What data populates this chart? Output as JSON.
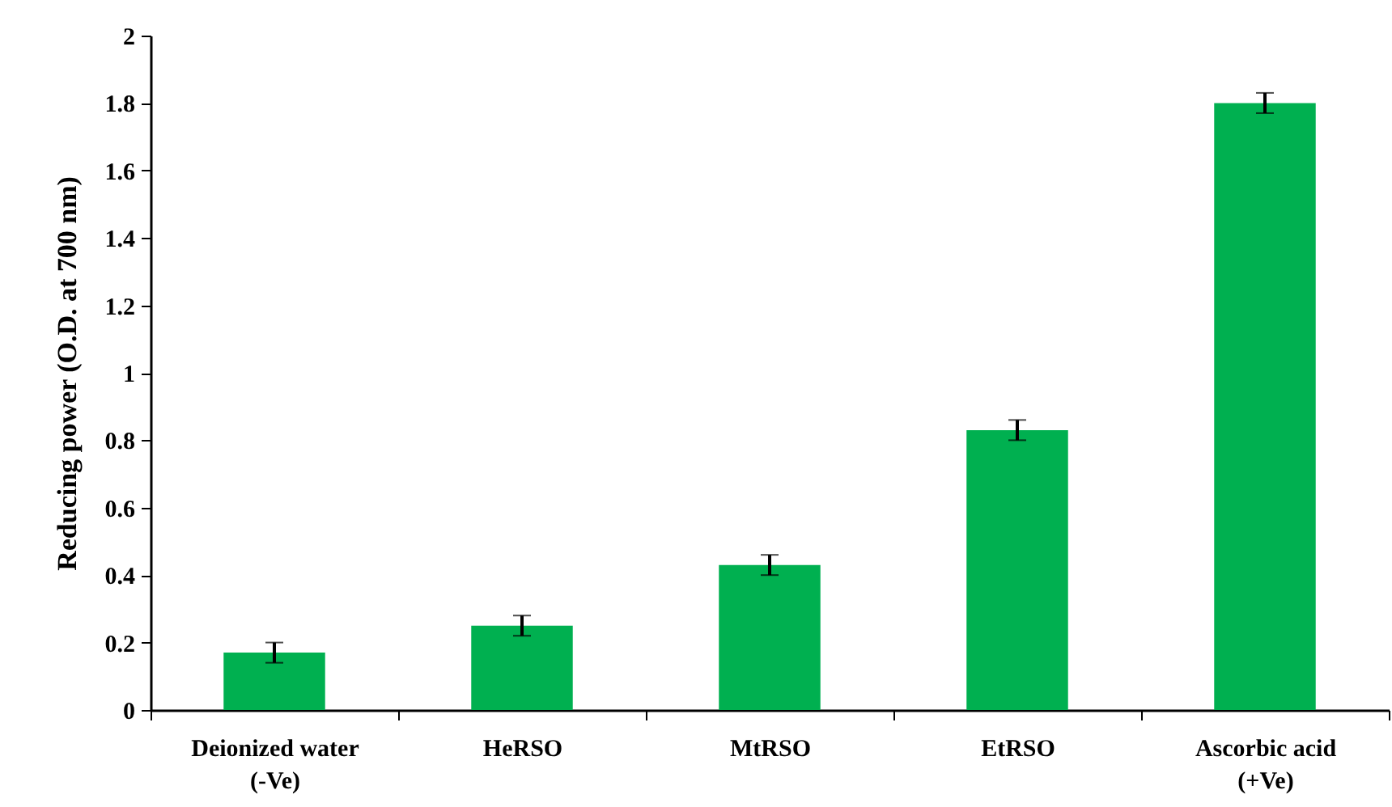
{
  "chart_data": {
    "type": "bar",
    "ylabel": "Reducing power (O.D. at 700 nm)",
    "categories": [
      "Deionized water\n(-Ve)",
      "HeRSO",
      "MtRSO",
      "EtRSO",
      "Ascorbic acid\n(+Ve)"
    ],
    "values": [
      0.17,
      0.25,
      0.43,
      0.83,
      1.8
    ],
    "errors": [
      0.03,
      0.03,
      0.03,
      0.03,
      0.03
    ],
    "color": "#00b050",
    "ylim": [
      0,
      2
    ],
    "yticks": [
      0,
      0.2,
      0.4,
      0.6,
      0.8,
      1,
      1.2,
      1.4,
      1.6,
      1.8,
      2
    ],
    "grid": false
  }
}
